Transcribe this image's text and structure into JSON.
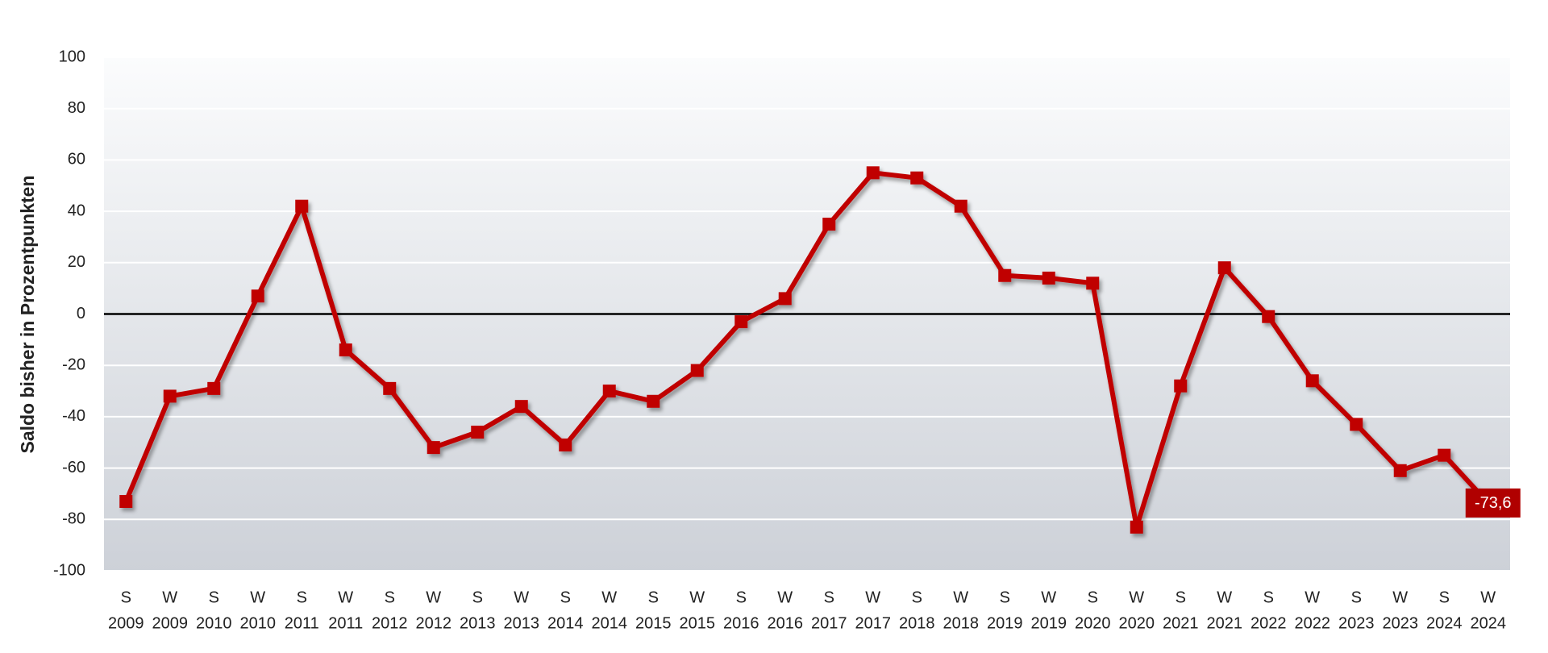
{
  "chart_data": {
    "type": "line",
    "y_axis_label": "Saldo bisher in Prozentpunkten",
    "categories": [
      [
        "S",
        "2009"
      ],
      [
        "W",
        "2009"
      ],
      [
        "S",
        "2010"
      ],
      [
        "W",
        "2010"
      ],
      [
        "S",
        "2011"
      ],
      [
        "W",
        "2011"
      ],
      [
        "S",
        "2012"
      ],
      [
        "W",
        "2012"
      ],
      [
        "S",
        "2013"
      ],
      [
        "W",
        "2013"
      ],
      [
        "S",
        "2014"
      ],
      [
        "W",
        "2014"
      ],
      [
        "S",
        "2015"
      ],
      [
        "W",
        "2015"
      ],
      [
        "S",
        "2016"
      ],
      [
        "W",
        "2016"
      ],
      [
        "S",
        "2017"
      ],
      [
        "W",
        "2017"
      ],
      [
        "S",
        "2018"
      ],
      [
        "W",
        "2018"
      ],
      [
        "S",
        "2019"
      ],
      [
        "W",
        "2019"
      ],
      [
        "S",
        "2020"
      ],
      [
        "W",
        "2020"
      ],
      [
        "S",
        "2021"
      ],
      [
        "W",
        "2021"
      ],
      [
        "S",
        "2022"
      ],
      [
        "W",
        "2022"
      ],
      [
        "S",
        "2023"
      ],
      [
        "W",
        "2023"
      ],
      [
        "S",
        "2024"
      ],
      [
        "W",
        "2024"
      ]
    ],
    "values": [
      -73,
      -32,
      -29,
      7,
      42,
      -14,
      -29,
      -52,
      -46,
      -36,
      -51,
      -30,
      -34,
      -22,
      -3,
      6,
      35,
      55,
      53,
      42,
      15,
      14,
      12,
      -83,
      -28,
      18,
      -1,
      -26,
      -43,
      -61,
      -55,
      -73.6
    ],
    "value_labels": [
      null,
      null,
      null,
      null,
      null,
      null,
      null,
      null,
      null,
      null,
      null,
      null,
      null,
      null,
      null,
      null,
      null,
      null,
      null,
      null,
      null,
      null,
      null,
      null,
      null,
      null,
      null,
      null,
      null,
      null,
      null,
      "-73,6"
    ],
    "color": "#c00000",
    "ylim": [
      -100,
      100
    ],
    "yticks": [
      -100,
      -80,
      -60,
      -40,
      -20,
      0,
      20,
      40,
      60,
      80,
      100
    ],
    "grid": true
  }
}
